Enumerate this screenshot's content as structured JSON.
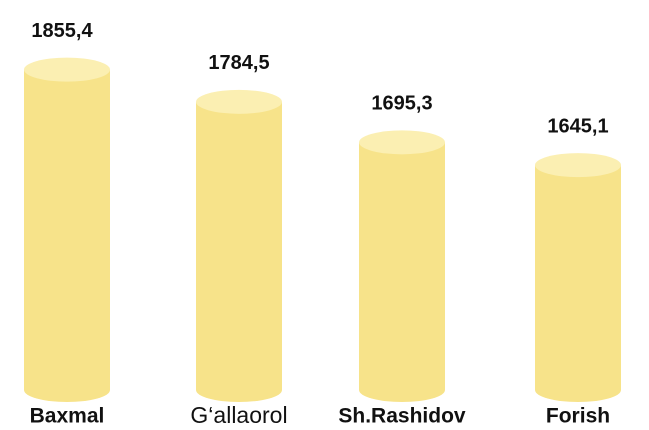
{
  "chart_data": {
    "type": "bar",
    "categories": [
      "Baxmal",
      "G‘allaorol",
      "Sh.Rashidov",
      "Forish"
    ],
    "values": [
      1855.4,
      1784.5,
      1695.3,
      1645.1
    ],
    "value_labels": [
      "1855,4",
      "1784,5",
      "1695,3",
      "1645,1"
    ],
    "color": "#f7e38a",
    "ylim": [
      1150,
      1870
    ]
  }
}
